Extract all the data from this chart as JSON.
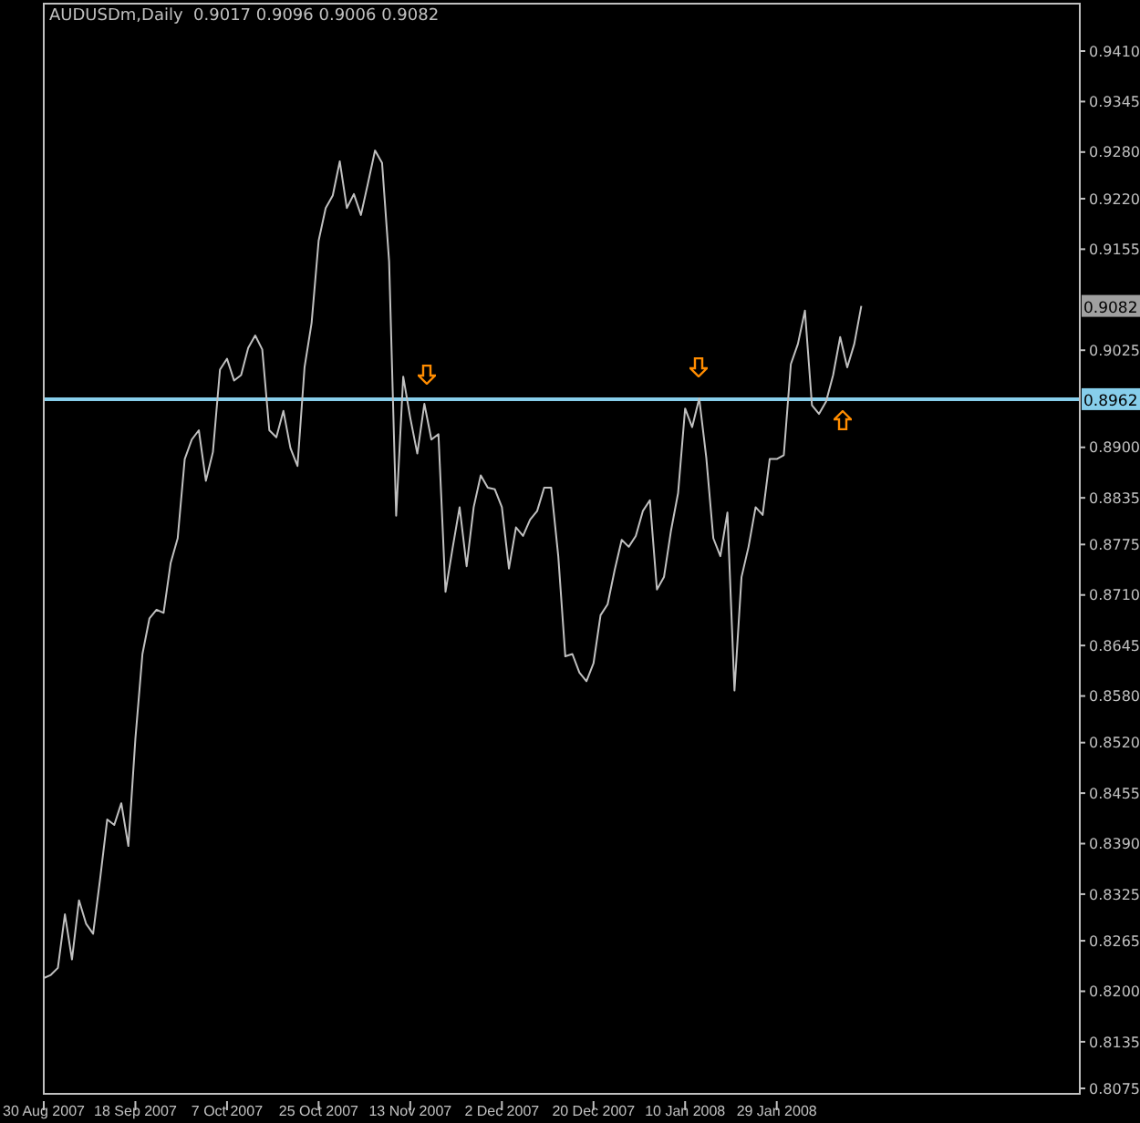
{
  "chart_data": {
    "type": "line",
    "title": "AUDUSDm,Daily  0.9017 0.9096 0.9006 0.9082",
    "categories": [
      "30 Aug 2007",
      null,
      null,
      null,
      null,
      null,
      null,
      null,
      null,
      null,
      null,
      null,
      null,
      "18 Sep 2007",
      null,
      null,
      null,
      null,
      null,
      null,
      null,
      null,
      null,
      null,
      null,
      null,
      "7 Oct 2007",
      null,
      null,
      null,
      null,
      null,
      null,
      null,
      null,
      null,
      null,
      null,
      null,
      "25 Oct 2007",
      null,
      null,
      null,
      null,
      null,
      null,
      null,
      null,
      null,
      null,
      null,
      null,
      "13 Nov 2007",
      null,
      null,
      null,
      null,
      null,
      null,
      null,
      null,
      null,
      null,
      null,
      null,
      "2 Dec 2007",
      null,
      null,
      null,
      null,
      null,
      null,
      null,
      null,
      null,
      null,
      null,
      null,
      "20 Dec 2007",
      null,
      null,
      null,
      null,
      null,
      null,
      null,
      null,
      null,
      null,
      null,
      null,
      "10 Jan 2008",
      null,
      null,
      null,
      null,
      null,
      null,
      null,
      null,
      null,
      null,
      null,
      null,
      "29 Jan 2008",
      null,
      null,
      null,
      null,
      null,
      null,
      null,
      null,
      null,
      null,
      null,
      null,
      null,
      null,
      null,
      null,
      null,
      null,
      null,
      null,
      null,
      null,
      null,
      null,
      null,
      null,
      null,
      null,
      null,
      null,
      null,
      null,
      null,
      null,
      null,
      null,
      null,
      null,
      null,
      null,
      null,
      null,
      null
    ],
    "series": [
      {
        "color": "#c0c0c0",
        "values": [
          0.8217,
          0.8221,
          0.823,
          0.8299,
          0.8241,
          0.8317,
          0.8287,
          0.8274,
          0.8345,
          0.8421,
          0.8414,
          0.8442,
          0.8387,
          0.8525,
          0.8634,
          0.868,
          0.8691,
          0.8687,
          0.8751,
          0.8783,
          0.8885,
          0.891,
          0.8922,
          0.8857,
          0.8894,
          0.9,
          0.9014,
          0.8986,
          0.8993,
          0.9028,
          0.9044,
          0.9026,
          0.8922,
          0.8913,
          0.8947,
          0.8899,
          0.8876,
          0.9003,
          0.906,
          0.9166,
          0.9208,
          0.9224,
          0.9268,
          0.9208,
          0.9226,
          0.9199,
          0.924,
          0.9282,
          0.9266,
          0.9139,
          0.8812,
          0.8991,
          0.8938,
          0.8892,
          0.8956,
          0.891,
          0.8917,
          0.8714,
          0.877,
          0.8823,
          0.8747,
          0.8823,
          0.8864,
          0.8848,
          0.8846,
          0.8823,
          0.8744,
          0.8797,
          0.8786,
          0.8807,
          0.8818,
          0.8848,
          0.8848,
          0.876,
          0.8631,
          0.8634,
          0.861,
          0.8599,
          0.8622,
          0.8684,
          0.8698,
          0.8742,
          0.8781,
          0.8772,
          0.8786,
          0.8818,
          0.8832,
          0.8717,
          0.8733,
          0.8793,
          0.8841,
          0.895,
          0.8926,
          0.8963,
          0.8887,
          0.8783,
          0.876,
          0.8816,
          0.8587,
          0.8733,
          0.8772,
          0.8823,
          0.8813,
          0.8885,
          0.8885,
          0.889,
          0.9007,
          0.9033,
          0.9076,
          0.8954,
          0.8943,
          0.8959,
          0.8993,
          0.9042,
          0.9003,
          0.9033,
          0.9082,
          null,
          null,
          null,
          null,
          null,
          null,
          null,
          null,
          null,
          null,
          null,
          null,
          null,
          null,
          null,
          null,
          null,
          null,
          null,
          null,
          null,
          null,
          null,
          null,
          null,
          null,
          null,
          null,
          null,
          null,
          null
        ]
      }
    ],
    "ylim": [
      0.8068,
      0.9471
    ],
    "yticks": [
      {
        "value": 0.941,
        "label": "0.9410"
      },
      0.9345,
      {
        "value": 0.928,
        "label": "0.9280"
      },
      {
        "value": 0.922,
        "label": "0.9220"
      },
      0.9155,
      0.9025,
      {
        "value": 0.89,
        "label": "0.8900"
      },
      0.8835,
      0.8775,
      {
        "value": 0.871,
        "label": "0.8710"
      },
      0.8645,
      {
        "value": 0.858,
        "label": "0.8580"
      },
      {
        "value": 0.852,
        "label": "0.8520"
      },
      0.8455,
      {
        "value": 0.839,
        "label": "0.8390"
      },
      0.8325,
      0.8265,
      {
        "value": 0.82,
        "label": "0.8200"
      },
      0.8135,
      0.8075
    ],
    "ref_lines": [
      {
        "axis": "y",
        "value": 0.8962,
        "label": "0.8962",
        "color": "#87ceeb"
      }
    ],
    "annotations": [
      "0.9082"
    ],
    "marker": "none",
    "line_style": "solid"
  }
}
